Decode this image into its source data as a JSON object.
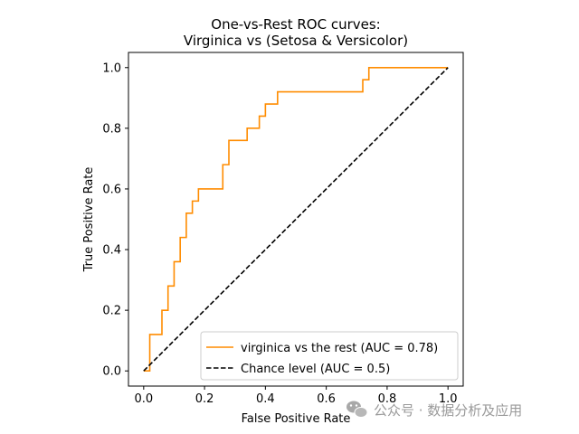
{
  "chart_data": {
    "type": "line",
    "title": [
      "One-vs-Rest ROC curves:",
      "Virginica vs (Setosa & Versicolor)"
    ],
    "xlabel": "False Positive Rate",
    "ylabel": "True Positive Rate",
    "xlim": [
      -0.05,
      1.05
    ],
    "ylim": [
      -0.05,
      1.05
    ],
    "xticks": [
      0.0,
      0.2,
      0.4,
      0.6,
      0.8,
      1.0
    ],
    "yticks": [
      0.0,
      0.2,
      0.4,
      0.6,
      0.8,
      1.0
    ],
    "xtick_labels": [
      "0.0",
      "0.2",
      "0.4",
      "0.6",
      "0.8",
      "1.0"
    ],
    "ytick_labels": [
      "0.0",
      "0.2",
      "0.4",
      "0.6",
      "0.8",
      "1.0"
    ],
    "grid": false,
    "legend_position": "lower-right",
    "series": [
      {
        "name": "virginica vs the rest (AUC = 0.78)",
        "color": "#ff8c00",
        "style": "solid",
        "x": [
          0.0,
          0.02,
          0.02,
          0.06,
          0.06,
          0.08,
          0.08,
          0.1,
          0.1,
          0.12,
          0.12,
          0.14,
          0.14,
          0.16,
          0.16,
          0.18,
          0.18,
          0.26,
          0.26,
          0.28,
          0.28,
          0.34,
          0.34,
          0.38,
          0.38,
          0.4,
          0.4,
          0.44,
          0.44,
          0.72,
          0.72,
          0.74,
          0.74,
          1.0
        ],
        "y": [
          0.0,
          0.0,
          0.12,
          0.12,
          0.2,
          0.2,
          0.28,
          0.28,
          0.36,
          0.36,
          0.44,
          0.44,
          0.52,
          0.52,
          0.56,
          0.56,
          0.6,
          0.6,
          0.68,
          0.68,
          0.76,
          0.76,
          0.8,
          0.8,
          0.84,
          0.84,
          0.88,
          0.88,
          0.92,
          0.92,
          0.96,
          0.96,
          1.0,
          1.0
        ]
      },
      {
        "name": "Chance level (AUC = 0.5)",
        "color": "#000000",
        "style": "dashed",
        "x": [
          0.0,
          1.0
        ],
        "y": [
          0.0,
          1.0
        ]
      }
    ]
  },
  "watermark": {
    "icon": "wechat-icon",
    "text": "公众号 · 数据分析及应用"
  }
}
